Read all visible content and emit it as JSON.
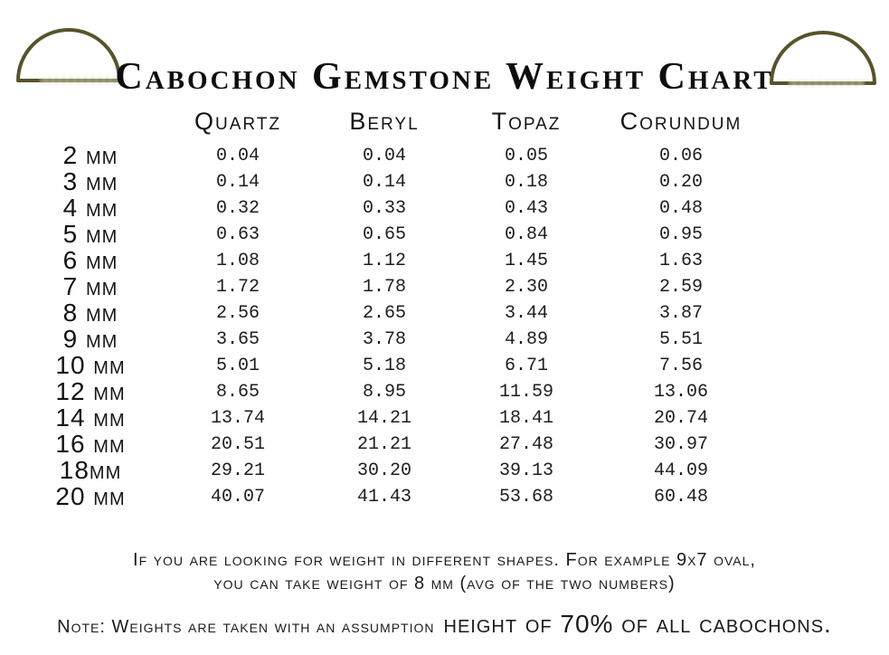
{
  "page": {
    "title": "Cabochon Gemstone Weight Chart"
  },
  "chart_data": {
    "type": "table",
    "title": "Cabochon Gemstone Weight Chart",
    "columns": [
      "Quartz",
      "Beryl",
      "Topaz",
      "Corundum"
    ],
    "categories": [
      "2 mm",
      "3 mm",
      "4 mm",
      "5 mm",
      "6 mm",
      "7 mm",
      "8 mm",
      "9 mm",
      "10 mm",
      "12 mm",
      "14 mm",
      "16 mm",
      "18mm",
      "20 mm"
    ],
    "series": [
      {
        "name": "Quartz",
        "values": [
          "0.04",
          "0.14",
          "0.32",
          "0.63",
          "1.08",
          "1.72",
          "2.56",
          "3.65",
          "5.01",
          "8.65",
          "13.74",
          "20.51",
          "29.21",
          "40.07"
        ]
      },
      {
        "name": "Beryl",
        "values": [
          "0.04",
          "0.14",
          "0.33",
          "0.65",
          "1.12",
          "1.78",
          "2.65",
          "3.78",
          "5.18",
          "8.95",
          "14.21",
          "21.21",
          "30.20",
          "41.43"
        ]
      },
      {
        "name": "Topaz",
        "values": [
          "0.05",
          "0.18",
          "0.43",
          "0.84",
          "1.45",
          "2.30",
          "3.44",
          "4.89",
          "6.71",
          "11.59",
          "18.41",
          "27.48",
          "39.13",
          "53.68"
        ]
      },
      {
        "name": "Corundum",
        "values": [
          "0.06",
          "0.20",
          "0.48",
          "0.95",
          "1.63",
          "2.59",
          "3.87",
          "5.51",
          "7.56",
          "13.06",
          "20.74",
          "30.97",
          "44.09",
          "60.48"
        ]
      }
    ]
  },
  "footer": {
    "shape_note_line1": "If you are looking for weight in different shapes. For example 9x7 oval,",
    "shape_note_line2": "you can take weight of 8 mm (avg of the two numbers)",
    "bottom_note_prefix": "Note: Weights are taken with an assumption",
    "bottom_note_emphasis": "height of 70% of all cabochons."
  },
  "colors": {
    "dome_stroke": "#57532c",
    "text": "#161616"
  }
}
